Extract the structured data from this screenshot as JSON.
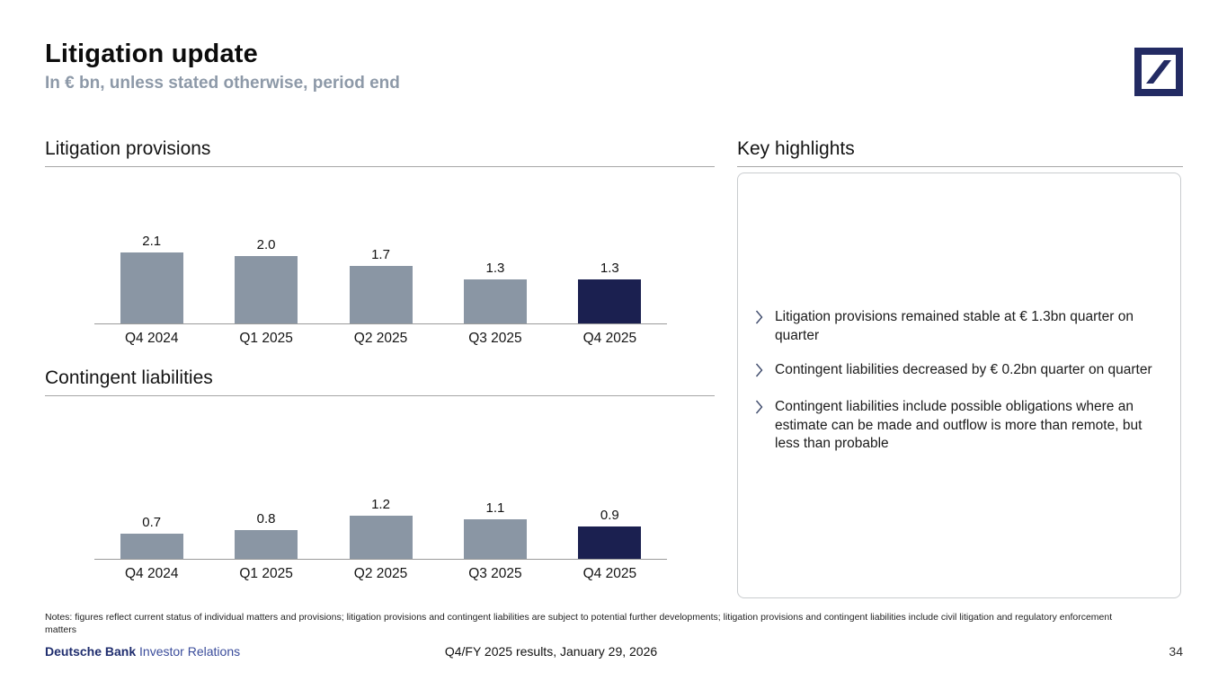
{
  "slide": {
    "title": "Litigation update",
    "subtitle": "In € bn, unless stated otherwise, period end"
  },
  "logo": {
    "name": "deutsche-bank-logo",
    "color": "#232b63"
  },
  "chart_data": [
    {
      "type": "bar",
      "title": "Litigation provisions",
      "categories": [
        "Q4 2024",
        "Q1 2025",
        "Q2 2025",
        "Q3 2025",
        "Q4 2025"
      ],
      "values": [
        2.1,
        2.0,
        1.7,
        1.3,
        1.3
      ],
      "value_labels": [
        "2.1",
        "2.0",
        "1.7",
        "1.3",
        "1.3"
      ],
      "unit": "€ bn",
      "highlight_index": 4,
      "bar_color": "#8a96a4",
      "highlight_color": "#1b2050",
      "ylim": [
        0,
        2.5
      ],
      "grid": false,
      "legend": false
    },
    {
      "type": "bar",
      "title": "Contingent liabilities",
      "categories": [
        "Q4 2024",
        "Q1 2025",
        "Q2 2025",
        "Q3 2025",
        "Q4 2025"
      ],
      "values": [
        0.7,
        0.8,
        1.2,
        1.1,
        0.9
      ],
      "value_labels": [
        "0.7",
        "0.8",
        "1.2",
        "1.1",
        "0.9"
      ],
      "unit": "€ bn",
      "highlight_index": 4,
      "bar_color": "#8a96a4",
      "highlight_color": "#1b2050",
      "ylim": [
        0,
        1.5
      ],
      "grid": false,
      "legend": false
    }
  ],
  "highlights": {
    "title": "Key highlights",
    "items": [
      "Litigation provisions remained stable at € 1.3bn quarter on quarter",
      "Contingent liabilities decreased by € 0.2bn quarter on quarter",
      "Contingent liabilities include possible obligations where an estimate can be made and outflow is more than remote, but less than probable"
    ]
  },
  "notes": "Notes: figures reflect current status of individual matters and provisions; litigation provisions and contingent liabilities are subject to potential further developments; litigation provisions and contingent liabilities include civil litigation and regulatory enforcement matters",
  "footer": {
    "brand_bold": "Deutsche Bank",
    "brand_regular": "Investor Relations",
    "center": "Q4/FY 2025 results, January 29, 2026",
    "page": "34"
  }
}
